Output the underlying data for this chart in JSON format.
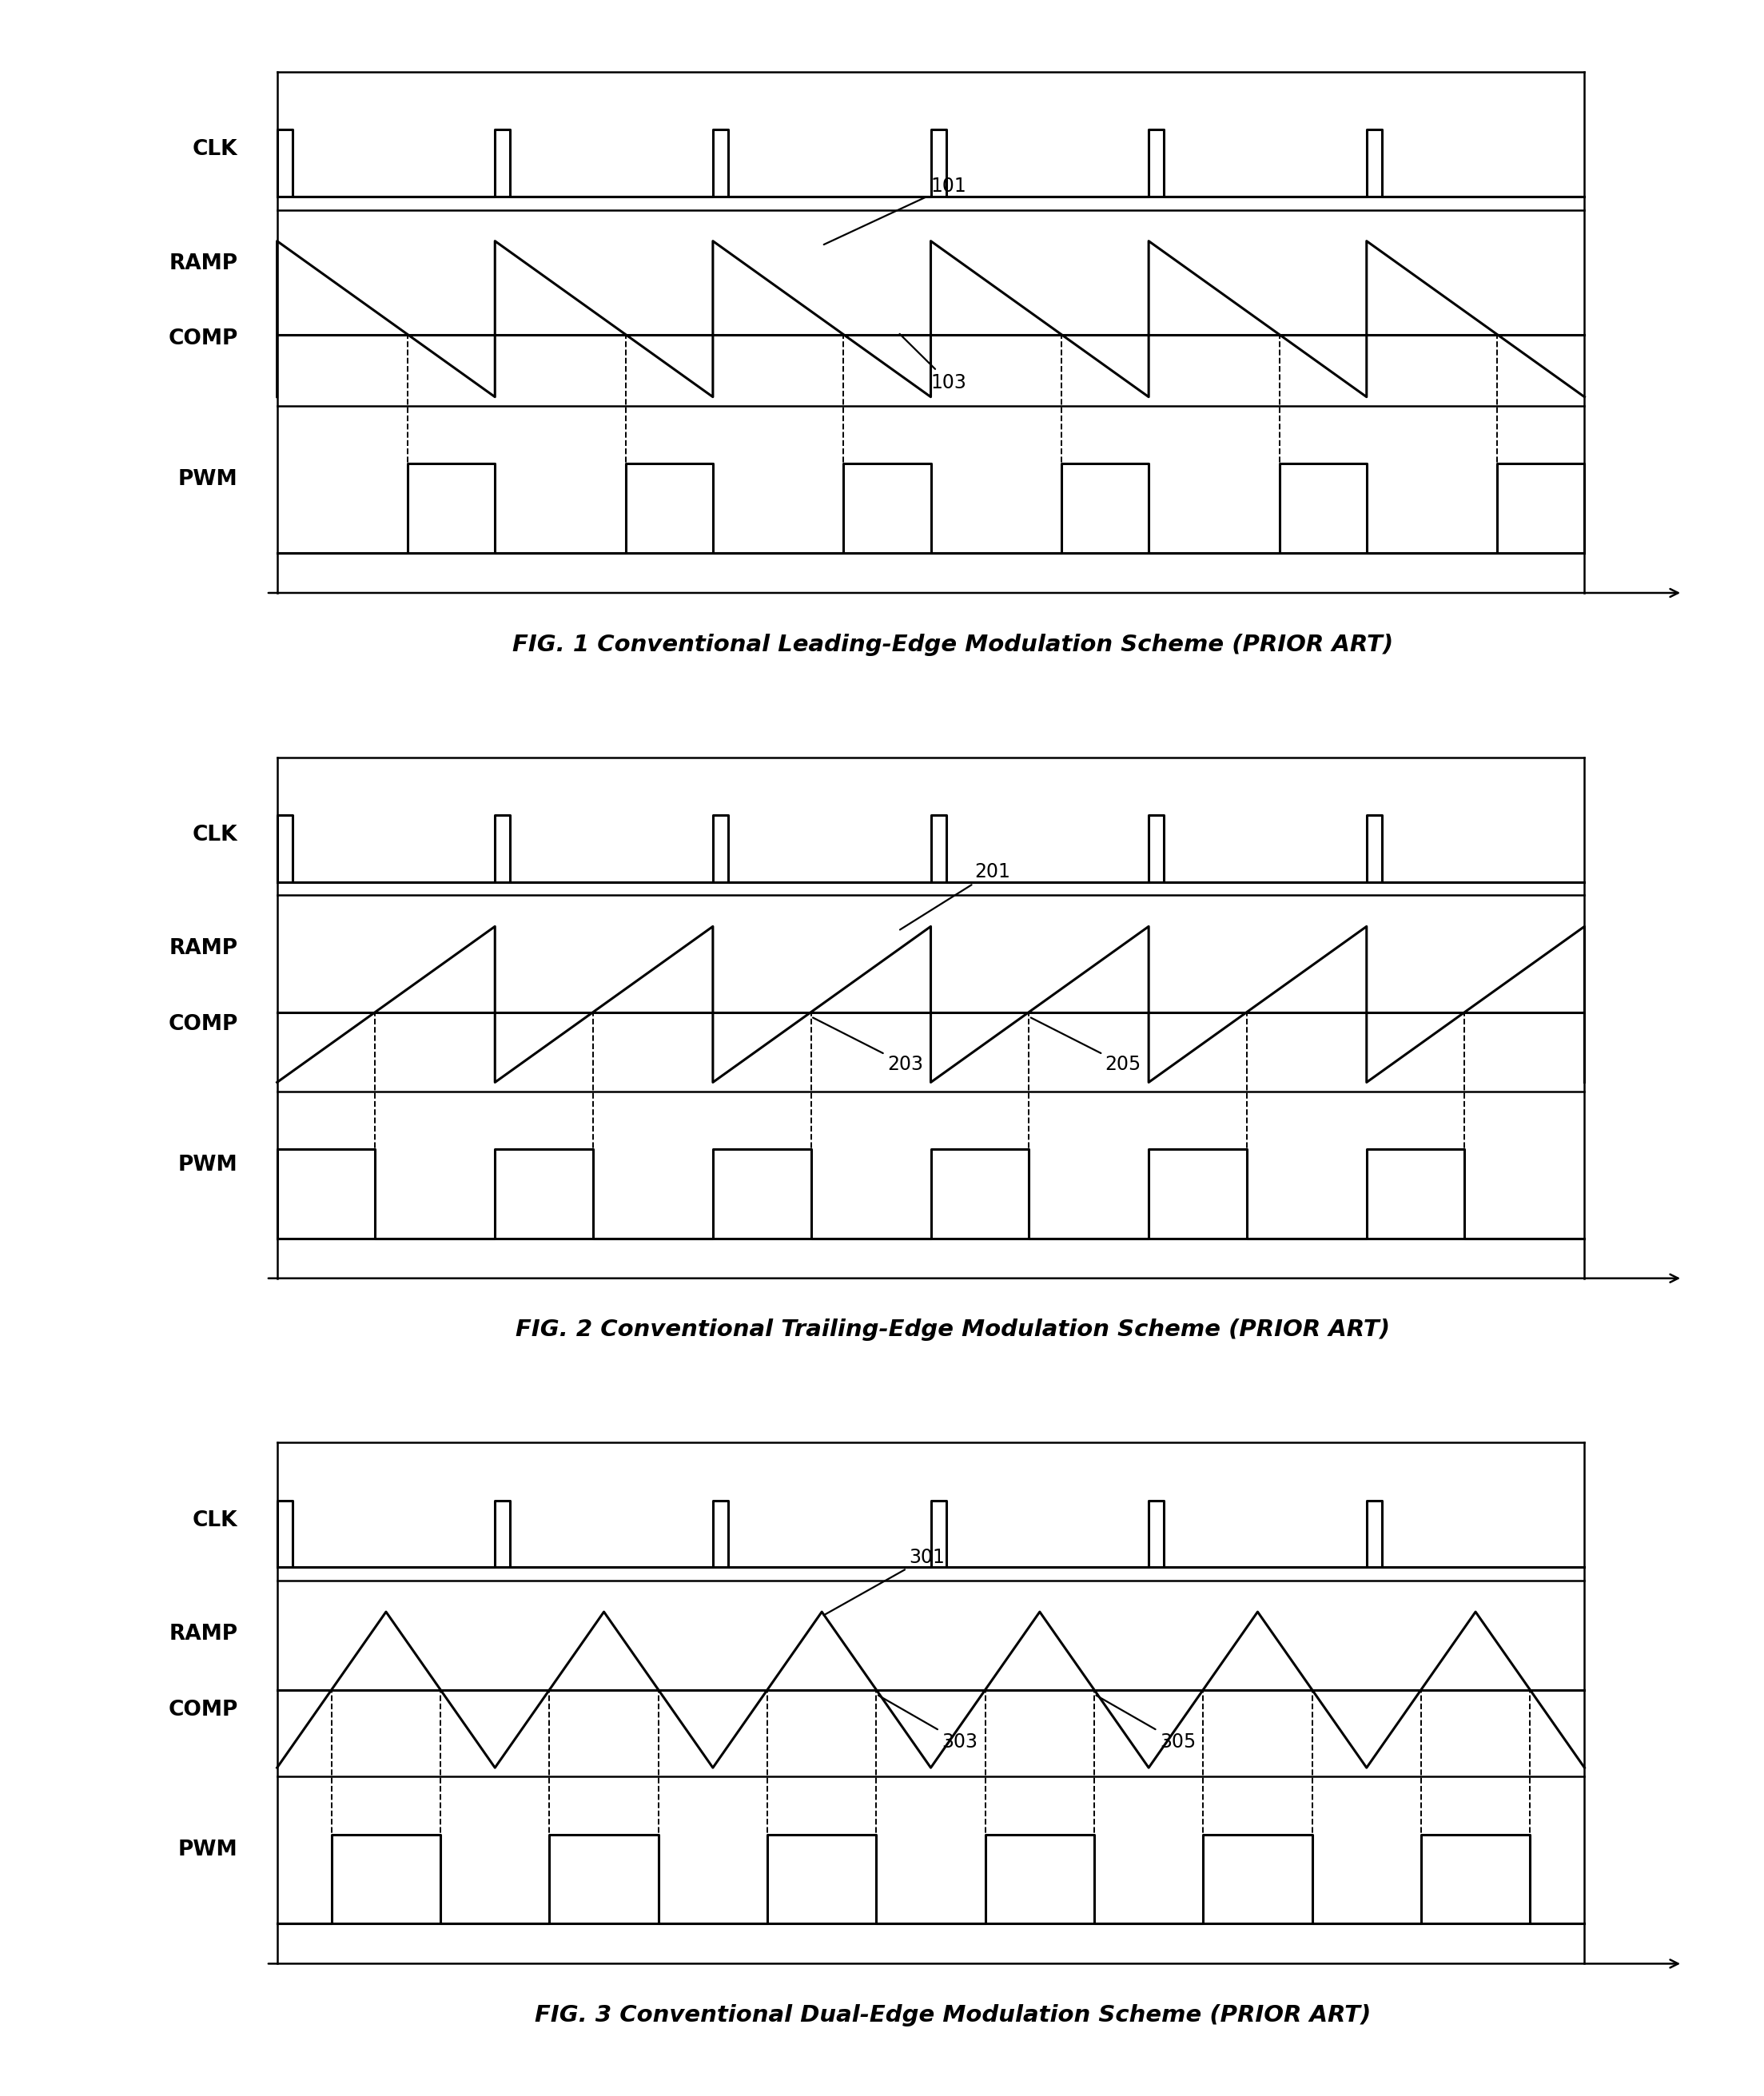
{
  "bg_color": "#ffffff",
  "line_color": "#000000",
  "lw": 2.2,
  "lw_border": 1.8,
  "lw_dashed": 1.4,
  "fig1_title": "FIG. 1 Conventional Leading-Edge Modulation Scheme (PRIOR ART)",
  "fig2_title": "FIG. 2 Conventional Trailing-Edge Modulation Scheme (PRIOR ART)",
  "fig3_title": "FIG. 3 Conventional Dual-Edge Modulation Scheme (PRIOR ART)",
  "T": 1.0,
  "N": 6,
  "fig1_comp": 0.4,
  "fig2_comp": 0.45,
  "fig3_comp": 0.5,
  "label_fontsize": 19,
  "title_fontsize": 21,
  "annot_fontsize": 17
}
